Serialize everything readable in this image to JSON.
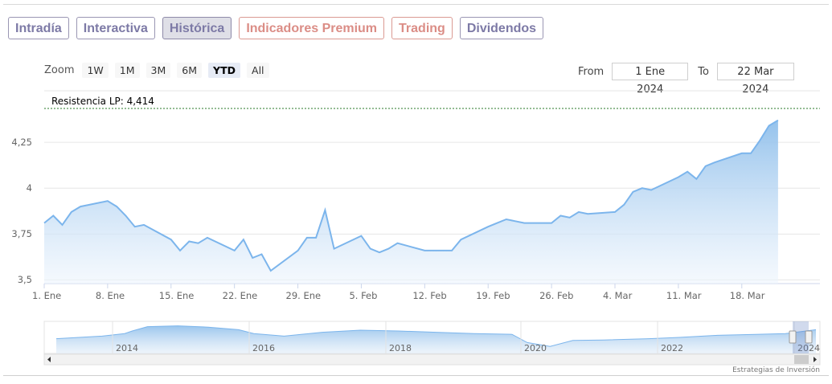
{
  "tabs": [
    {
      "label": "Intradía",
      "style": "normal"
    },
    {
      "label": "Interactiva",
      "style": "normal"
    },
    {
      "label": "Histórica",
      "style": "active"
    },
    {
      "label": "Indicadores Premium",
      "style": "premium"
    },
    {
      "label": "Trading",
      "style": "premium"
    },
    {
      "label": "Dividendos",
      "style": "normal"
    }
  ],
  "zoom": {
    "label": "Zoom",
    "options": [
      "1W",
      "1M",
      "3M",
      "6M",
      "YTD",
      "All"
    ],
    "selected": "YTD"
  },
  "range": {
    "from_label": "From",
    "from_value": "1 Ene 2024",
    "to_label": "To",
    "to_value": "22 Mar 2024"
  },
  "resistance": {
    "label": "Resistencia LP: 4,414",
    "value": 4.414
  },
  "credit": "Estrategias de Inversión",
  "colors": {
    "line": "#7cb5ec",
    "area_top": "#8fbfeb",
    "area_bottom": "#f2f7fd",
    "resistance": "#2a7a2a",
    "tab_text": "#7d7aa6",
    "tab_premium": "#db8d86"
  },
  "chart_data": {
    "type": "area",
    "y_ticks": [
      "3,5",
      "3,75",
      "4",
      "4,25"
    ],
    "y_tick_values": [
      3.5,
      3.75,
      4,
      4.25
    ],
    "ylim": [
      3.48,
      4.5
    ],
    "x_ticks": [
      "1. Ene",
      "8. Ene",
      "15. Ene",
      "22. Ene",
      "29. Ene",
      "5. Feb",
      "12. Feb",
      "19. Feb",
      "26. Feb",
      "4. Mar",
      "11. Mar",
      "18. Mar"
    ],
    "x_tick_days": [
      0,
      7,
      14,
      21,
      28,
      35,
      42,
      49,
      56,
      63,
      70,
      77
    ],
    "points": [
      [
        "2024-01-01",
        3.81
      ],
      [
        "2024-01-02",
        3.85
      ],
      [
        "2024-01-03",
        3.8
      ],
      [
        "2024-01-04",
        3.87
      ],
      [
        "2024-01-05",
        3.9
      ],
      [
        "2024-01-08",
        3.93
      ],
      [
        "2024-01-09",
        3.9
      ],
      [
        "2024-01-10",
        3.85
      ],
      [
        "2024-01-11",
        3.79
      ],
      [
        "2024-01-12",
        3.8
      ],
      [
        "2024-01-15",
        3.72
      ],
      [
        "2024-01-16",
        3.66
      ],
      [
        "2024-01-17",
        3.71
      ],
      [
        "2024-01-18",
        3.7
      ],
      [
        "2024-01-19",
        3.73
      ],
      [
        "2024-01-22",
        3.66
      ],
      [
        "2024-01-23",
        3.72
      ],
      [
        "2024-01-24",
        3.62
      ],
      [
        "2024-01-25",
        3.64
      ],
      [
        "2024-01-26",
        3.55
      ],
      [
        "2024-01-29",
        3.66
      ],
      [
        "2024-01-30",
        3.73
      ],
      [
        "2024-01-31",
        3.73
      ],
      [
        "2024-02-01",
        3.88
      ],
      [
        "2024-02-02",
        3.67
      ],
      [
        "2024-02-05",
        3.74
      ],
      [
        "2024-02-06",
        3.67
      ],
      [
        "2024-02-07",
        3.65
      ],
      [
        "2024-02-08",
        3.67
      ],
      [
        "2024-02-09",
        3.7
      ],
      [
        "2024-02-12",
        3.66
      ],
      [
        "2024-02-13",
        3.66
      ],
      [
        "2024-02-14",
        3.66
      ],
      [
        "2024-02-15",
        3.66
      ],
      [
        "2024-02-16",
        3.72
      ],
      [
        "2024-02-19",
        3.79
      ],
      [
        "2024-02-20",
        3.81
      ],
      [
        "2024-02-21",
        3.83
      ],
      [
        "2024-02-22",
        3.82
      ],
      [
        "2024-02-23",
        3.81
      ],
      [
        "2024-02-26",
        3.81
      ],
      [
        "2024-02-27",
        3.85
      ],
      [
        "2024-02-28",
        3.84
      ],
      [
        "2024-02-29",
        3.87
      ],
      [
        "2024-03-01",
        3.86
      ],
      [
        "2024-03-04",
        3.87
      ],
      [
        "2024-03-05",
        3.91
      ],
      [
        "2024-03-06",
        3.98
      ],
      [
        "2024-03-07",
        4.0
      ],
      [
        "2024-03-08",
        3.99
      ],
      [
        "2024-03-11",
        4.06
      ],
      [
        "2024-03-12",
        4.09
      ],
      [
        "2024-03-13",
        4.05
      ],
      [
        "2024-03-14",
        4.12
      ],
      [
        "2024-03-15",
        4.14
      ],
      [
        "2024-03-18",
        4.19
      ],
      [
        "2024-03-19",
        4.19
      ],
      [
        "2024-03-20",
        4.26
      ],
      [
        "2024-03-21",
        4.34
      ],
      [
        "2024-03-22",
        4.37
      ]
    ]
  },
  "navigator": {
    "years": [
      "2014",
      "2016",
      "2018",
      "2020",
      "2022",
      "2024"
    ]
  }
}
